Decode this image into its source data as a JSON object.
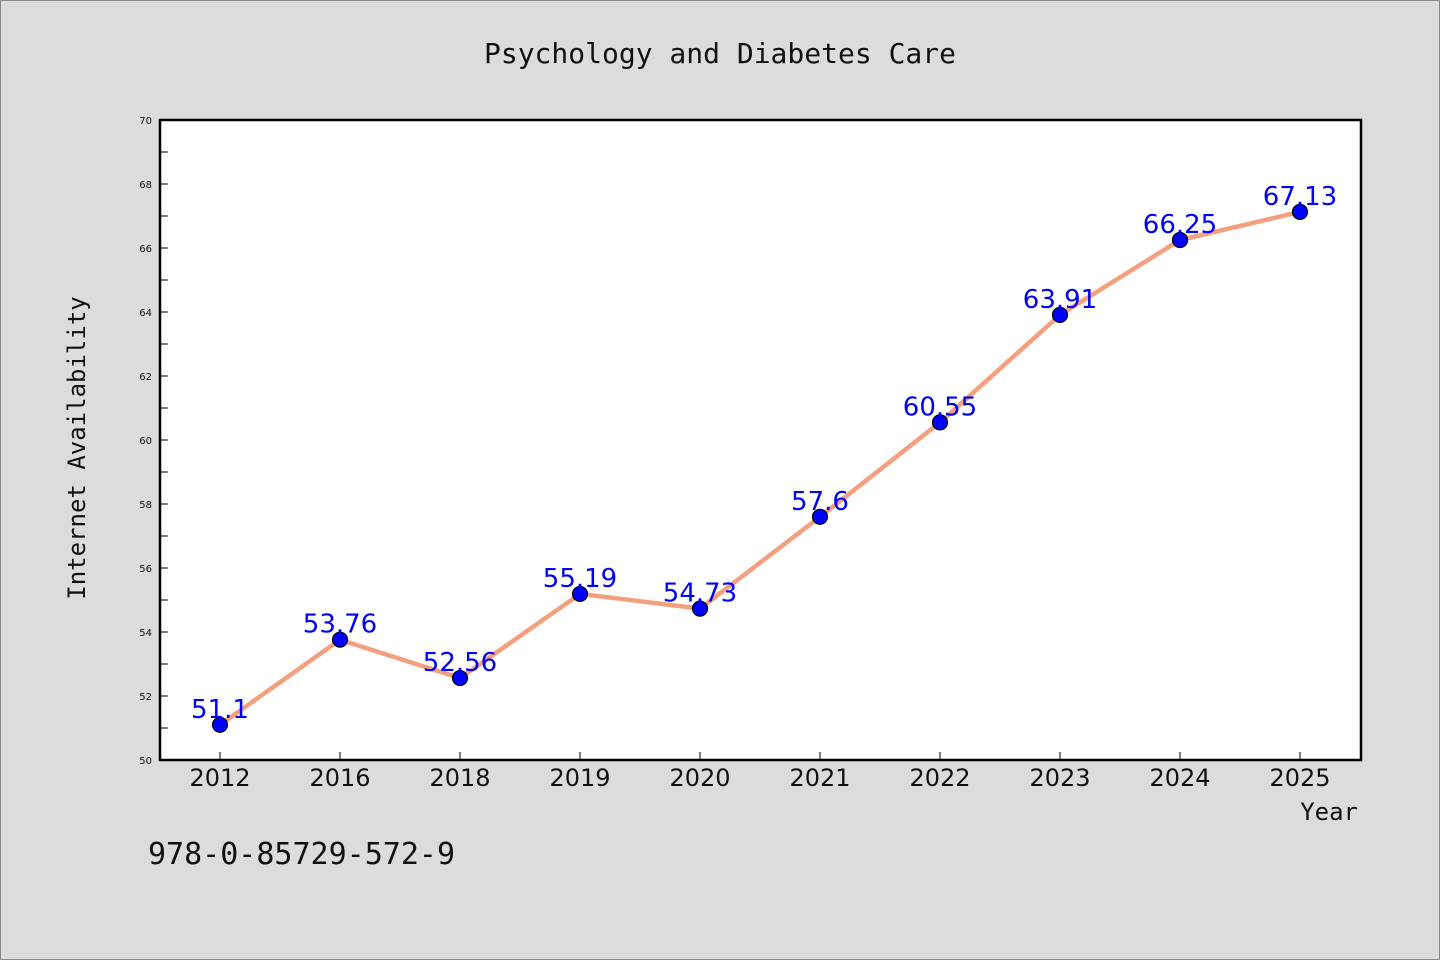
{
  "footer": {
    "isbn": "978-0-85729-572-9"
  },
  "colors": {
    "line": "#f4a07e",
    "marker": "#0000ff",
    "label": "#0000ff"
  },
  "chart_data": {
    "type": "line",
    "title": "Psychology and Diabetes Care",
    "xlabel": "Year",
    "ylabel": "Internet Availability",
    "categories": [
      "2012",
      "2016",
      "2018",
      "2019",
      "2020",
      "2021",
      "2022",
      "2023",
      "2024",
      "2025"
    ],
    "series": [
      {
        "values": [
          51.1,
          53.76,
          52.56,
          55.19,
          54.73,
          57.6,
          60.55,
          63.91,
          66.25,
          67.13
        ],
        "labels": [
          "51.1",
          "53.76",
          "52.56",
          "55.19",
          "54.73",
          "57.6",
          "60.55",
          "63.91",
          "66.25",
          "67.13"
        ]
      }
    ],
    "ylim": [
      50,
      70
    ],
    "yticks": [
      "50",
      "52",
      "54",
      "56",
      "58",
      "60",
      "62",
      "64",
      "66",
      "68",
      "70"
    ],
    "grid": false,
    "legend": "none"
  }
}
